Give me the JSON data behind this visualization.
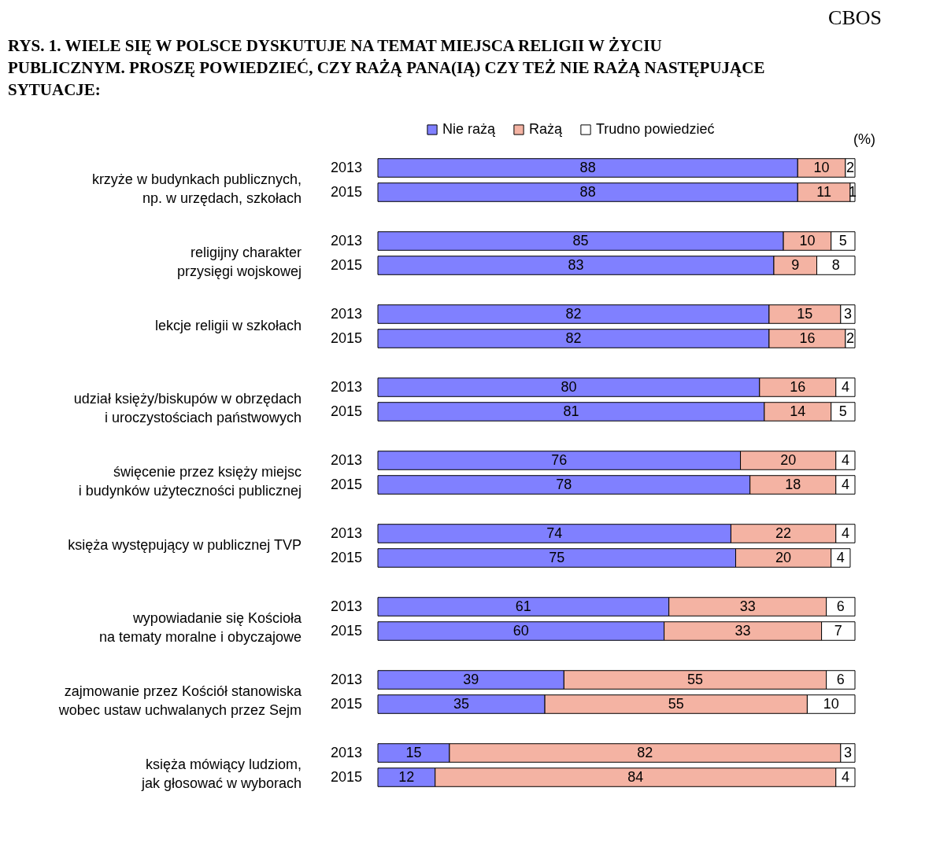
{
  "chart_data": {
    "type": "bar",
    "orientation": "horizontal",
    "stacked": true,
    "data_labels": true,
    "legend": "top",
    "title": "RYS. 1. WIELE SIĘ W POLSCE DYSKUTUJE NA TEMAT MIEJSCA RELIGII W ŻYCIU PUBLICZNYM. PROSZĘ POWIEDZIEĆ, CZY RAŻĄ PANA(IĄ) CZY TEŻ NIE RAŻĄ NASTĘPUJĄCE SYTUACJE:",
    "categories": [
      "2013",
      "2015",
      "2013",
      "2015",
      "2013",
      "2015",
      "2013",
      "2015",
      "2013",
      "2015",
      "2013",
      "2015",
      "2013",
      "2015",
      "2013",
      "2015",
      "2013",
      "2015"
    ],
    "series": [
      {
        "name": "Nie rażą",
        "color": "#8080ff",
        "values": [
          88,
          88,
          85,
          83,
          82,
          82,
          80,
          81,
          76,
          78,
          74,
          75,
          61,
          60,
          39,
          35,
          15,
          12
        ]
      },
      {
        "name": "Rażą",
        "color": "#f4b3a3",
        "values": [
          10,
          11,
          10,
          9,
          15,
          16,
          16,
          14,
          20,
          18,
          22,
          20,
          33,
          33,
          55,
          55,
          82,
          84
        ]
      },
      {
        "name": "Trudno powiedzieć",
        "color": "#ffffff",
        "values": [
          2,
          1,
          5,
          8,
          3,
          2,
          4,
          5,
          4,
          4,
          4,
          4,
          6,
          7,
          6,
          10,
          3,
          4
        ]
      }
    ],
    "annotations": [
      "krzyże w budynkach publicznych,\nnp. w urzędach, szkołach",
      "religijny charakter\nprzysięgi wojskowej",
      "lekcje religii w szkołach",
      "udział księży/biskupów w obrzędach\ni uroczystościach państwowych",
      "święcenie przez księży miejsc\ni budynków użyteczności publicznej",
      "księża występujący w publicznej TVP",
      "wypowiadanie się Kościoła\nna tematy moralne i obyczajowe",
      "zajmowanie przez Kościół stanowiska\nwobec ustaw uchwalanych przez Sejm",
      "księża mówiący ludziom,\njak głosować w wyborach",
      "(%)",
      "CBOS"
    ]
  }
}
